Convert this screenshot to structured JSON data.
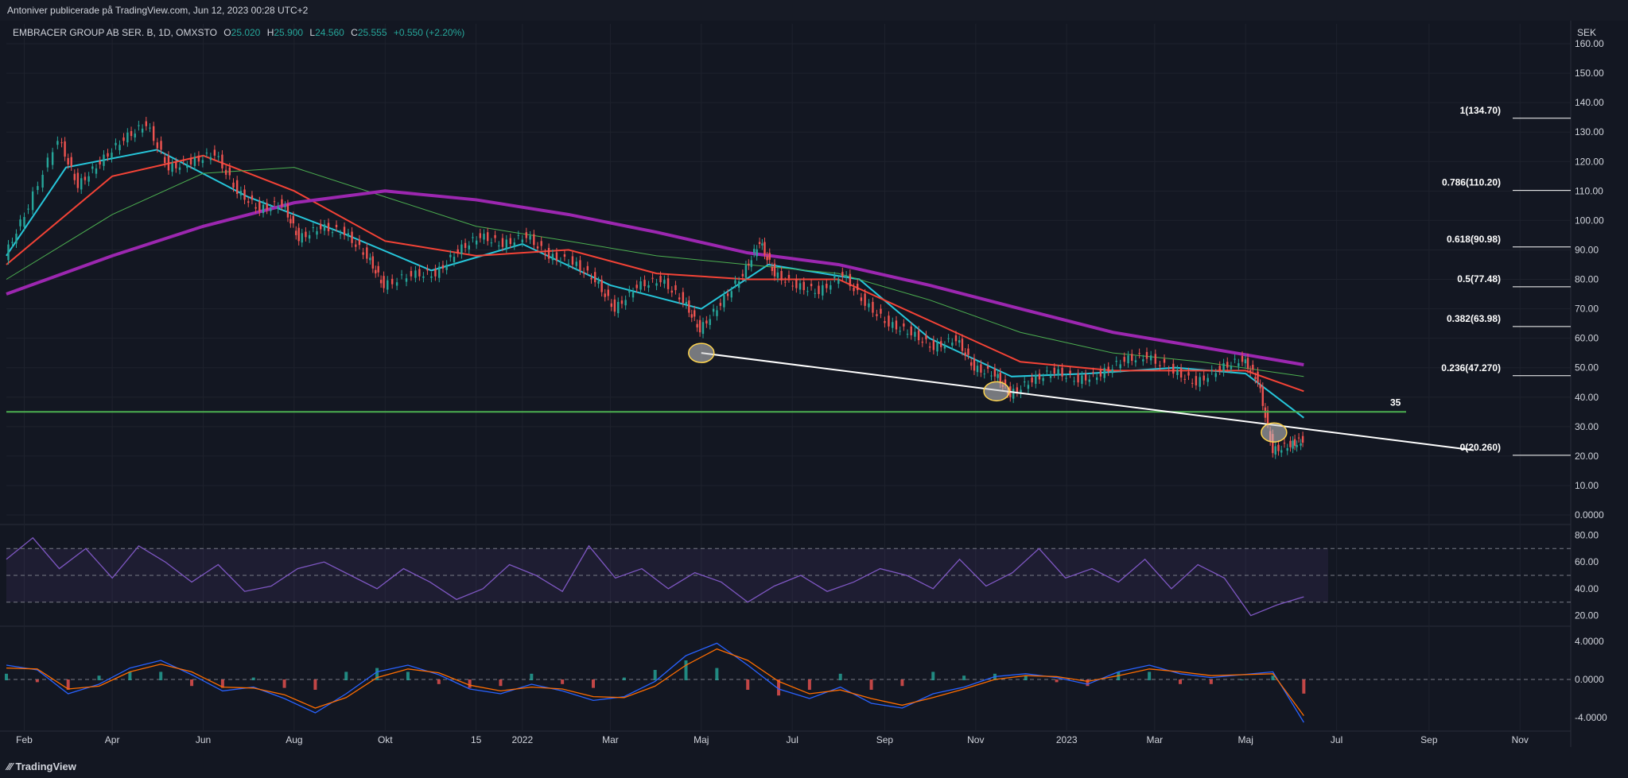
{
  "header": {
    "publisher": "Antoniver publicerade på TradingView.com, Jun 12, 2023 00:28 UTC+2"
  },
  "legend": {
    "symbol": "EMBRACER GROUP AB SER. B, 1D, OMXSTO",
    "open_label": "O",
    "open": "25.020",
    "high_label": "H",
    "high": "25.900",
    "low_label": "L",
    "low": "24.560",
    "close_label": "C",
    "close": "25.555",
    "change": "+0.550 (+2.20%)"
  },
  "footer": {
    "brand": "TradingView",
    "logo": "tradingview-logo-icon"
  },
  "colors": {
    "background": "#131722",
    "up": "#26a69a",
    "down": "#ef5350",
    "ma_fast": "#26c6da",
    "ma_mid": "#f44336",
    "ma_slow": "#4caf50",
    "ma_long": "#9c27b0",
    "rsi": "#7e57c2",
    "macd": "#2962ff",
    "signal": "#ff6d00",
    "support": "#4caf50",
    "trendline": "#ffffff"
  },
  "chart_data": [
    {
      "type": "line",
      "title": "EMBRACER GROUP AB SER. B, 1D, OMXSTO",
      "ylabel": "SEK",
      "ylim": [
        0,
        160
      ],
      "price_ticks": [
        "160.00",
        "150.00",
        "140.00",
        "130.00",
        "120.00",
        "110.00",
        "100.00",
        "90.00",
        "80.00",
        "70.00",
        "60.00",
        "50.00",
        "40.00",
        "30.00",
        "20.00",
        "10.00",
        "0.0000"
      ],
      "x_ticks": [
        "Feb",
        "Apr",
        "Jun",
        "Aug",
        "Okt",
        "15",
        "2022",
        "Mar",
        "Maj",
        "Jul",
        "Sep",
        "Nov",
        "2023",
        "Mar",
        "Maj",
        "Jul",
        "Sep",
        "Nov"
      ],
      "x_months": [
        "2021-02",
        "2021-04",
        "2021-06",
        "2021-08",
        "2021-10",
        "2021-12",
        "2022-01",
        "2022-03",
        "2022-05",
        "2022-07",
        "2022-09",
        "2022-11",
        "2023-01",
        "2023-03",
        "2023-05",
        "2023-07",
        "2023-09",
        "2023-11"
      ],
      "price_points": [
        [
          "2021-01-20",
          88
        ],
        [
          "2021-02-05",
          105
        ],
        [
          "2021-02-25",
          128
        ],
        [
          "2021-03-10",
          112
        ],
        [
          "2021-03-25",
          120
        ],
        [
          "2021-04-10",
          128
        ],
        [
          "2021-04-25",
          133
        ],
        [
          "2021-05-10",
          118
        ],
        [
          "2021-05-25",
          120
        ],
        [
          "2021-06-10",
          123
        ],
        [
          "2021-06-25",
          110
        ],
        [
          "2021-07-10",
          104
        ],
        [
          "2021-07-25",
          106
        ],
        [
          "2021-08-05",
          94
        ],
        [
          "2021-08-20",
          98
        ],
        [
          "2021-09-05",
          96
        ],
        [
          "2021-09-20",
          88
        ],
        [
          "2021-10-01",
          78
        ],
        [
          "2021-10-20",
          82
        ],
        [
          "2021-11-05",
          82
        ],
        [
          "2021-11-20",
          90
        ],
        [
          "2021-12-05",
          95
        ],
        [
          "2021-12-20",
          92
        ],
        [
          "2022-01-05",
          95
        ],
        [
          "2022-01-20",
          88
        ],
        [
          "2022-02-05",
          86
        ],
        [
          "2022-02-20",
          80
        ],
        [
          "2022-03-05",
          70
        ],
        [
          "2022-03-20",
          78
        ],
        [
          "2022-04-05",
          80
        ],
        [
          "2022-04-20",
          73
        ],
        [
          "2022-05-01",
          63
        ],
        [
          "2022-05-15",
          72
        ],
        [
          "2022-05-30",
          82
        ],
        [
          "2022-06-10",
          93
        ],
        [
          "2022-06-20",
          82
        ],
        [
          "2022-07-05",
          78
        ],
        [
          "2022-07-20",
          76
        ],
        [
          "2022-08-05",
          82
        ],
        [
          "2022-08-20",
          72
        ],
        [
          "2022-09-05",
          65
        ],
        [
          "2022-09-20",
          62
        ],
        [
          "2022-10-05",
          57
        ],
        [
          "2022-10-20",
          60
        ],
        [
          "2022-11-01",
          50
        ],
        [
          "2022-11-15",
          48
        ],
        [
          "2022-11-25",
          41
        ],
        [
          "2022-12-10",
          46
        ],
        [
          "2022-12-25",
          49
        ],
        [
          "2023-01-10",
          46
        ],
        [
          "2023-01-25",
          48
        ],
        [
          "2023-02-10",
          53
        ],
        [
          "2023-02-25",
          54
        ],
        [
          "2023-03-15",
          49
        ],
        [
          "2023-03-30",
          45
        ],
        [
          "2023-04-15",
          50
        ],
        [
          "2023-04-30",
          53
        ],
        [
          "2023-05-10",
          46
        ],
        [
          "2023-05-20",
          22
        ],
        [
          "2023-06-01",
          24
        ],
        [
          "2023-06-09",
          25.555
        ]
      ],
      "moving_averages": [
        {
          "color_key": "ma_fast",
          "points": [
            [
              "2021-01-20",
              88
            ],
            [
              "2021-03-01",
              118
            ],
            [
              "2021-05-01",
              124
            ],
            [
              "2021-07-01",
              108
            ],
            [
              "2021-09-01",
              96
            ],
            [
              "2021-11-01",
              83
            ],
            [
              "2022-01-01",
              92
            ],
            [
              "2022-03-01",
              78
            ],
            [
              "2022-05-01",
              70
            ],
            [
              "2022-06-15",
              85
            ],
            [
              "2022-08-15",
              80
            ],
            [
              "2022-10-01",
              60
            ],
            [
              "2022-11-25",
              47
            ],
            [
              "2023-01-15",
              48
            ],
            [
              "2023-03-15",
              50
            ],
            [
              "2023-05-01",
              48
            ],
            [
              "2023-06-09",
              33
            ]
          ]
        },
        {
          "color_key": "ma_mid",
          "points": [
            [
              "2021-01-20",
              85
            ],
            [
              "2021-04-01",
              115
            ],
            [
              "2021-06-01",
              122
            ],
            [
              "2021-08-01",
              110
            ],
            [
              "2021-10-01",
              93
            ],
            [
              "2021-12-01",
              88
            ],
            [
              "2022-02-01",
              90
            ],
            [
              "2022-04-01",
              82
            ],
            [
              "2022-06-01",
              80
            ],
            [
              "2022-08-01",
              80
            ],
            [
              "2022-10-01",
              66
            ],
            [
              "2022-12-01",
              52
            ],
            [
              "2023-02-01",
              49
            ],
            [
              "2023-04-01",
              49
            ],
            [
              "2023-05-01",
              49
            ],
            [
              "2023-06-09",
              42
            ]
          ]
        },
        {
          "color_key": "ma_slow",
          "points": [
            [
              "2021-01-20",
              80
            ],
            [
              "2021-04-01",
              102
            ],
            [
              "2021-06-01",
              116
            ],
            [
              "2021-08-01",
              118
            ],
            [
              "2021-10-01",
              108
            ],
            [
              "2021-12-01",
              98
            ],
            [
              "2022-02-01",
              93
            ],
            [
              "2022-04-01",
              88
            ],
            [
              "2022-06-01",
              85
            ],
            [
              "2022-08-01",
              82
            ],
            [
              "2022-10-01",
              73
            ],
            [
              "2022-12-01",
              62
            ],
            [
              "2023-02-01",
              55
            ],
            [
              "2023-04-01",
              52
            ],
            [
              "2023-06-09",
              47
            ]
          ]
        },
        {
          "color_key": "ma_long",
          "points": [
            [
              "2021-01-20",
              75
            ],
            [
              "2021-04-01",
              88
            ],
            [
              "2021-06-01",
              98
            ],
            [
              "2021-08-01",
              106
            ],
            [
              "2021-10-01",
              110
            ],
            [
              "2021-12-01",
              107
            ],
            [
              "2022-02-01",
              102
            ],
            [
              "2022-04-01",
              96
            ],
            [
              "2022-06-01",
              89
            ],
            [
              "2022-08-01",
              85
            ],
            [
              "2022-10-01",
              78
            ],
            [
              "2022-12-01",
              70
            ],
            [
              "2023-02-01",
              62
            ],
            [
              "2023-04-01",
              57
            ],
            [
              "2023-06-09",
              51
            ]
          ]
        }
      ],
      "support_line": {
        "value": 35,
        "label": "35"
      },
      "trendline": {
        "from": [
          "2022-05-01",
          55
        ],
        "to": [
          "2023-10-01",
          22
        ]
      },
      "highlighted_points": [
        [
          "2022-05-01",
          55
        ],
        [
          "2022-11-15",
          42
        ],
        [
          "2023-05-20",
          28
        ]
      ],
      "fibonacci_levels": [
        {
          "label": "1(134.70)",
          "value": 134.7
        },
        {
          "label": "0.786(110.20)",
          "value": 110.2
        },
        {
          "label": "0.618(90.98)",
          "value": 90.98
        },
        {
          "label": "0.5(77.48)",
          "value": 77.48
        },
        {
          "label": "0.382(63.98)",
          "value": 63.98
        },
        {
          "label": "0.236(47.270)",
          "value": 47.27
        },
        {
          "label": "0(20.260)",
          "value": 20.26
        }
      ]
    },
    {
      "type": "line",
      "title": "",
      "ylim": [
        15,
        85
      ],
      "ticks": [
        "80.00",
        "60.00",
        "40.00",
        "20.00"
      ],
      "bands": [
        30,
        50,
        70
      ],
      "series": [
        {
          "values": [
            62,
            78,
            55,
            70,
            48,
            72,
            60,
            45,
            58,
            38,
            42,
            55,
            60,
            50,
            40,
            55,
            45,
            32,
            40,
            58,
            50,
            38,
            72,
            48,
            55,
            40,
            52,
            45,
            30,
            42,
            50,
            38,
            45,
            55,
            50,
            40,
            62,
            42,
            52,
            70,
            48,
            55,
            45,
            62,
            40,
            58,
            48,
            20,
            28,
            34
          ]
        }
      ]
    },
    {
      "type": "bar",
      "title": "",
      "ylim": [
        -5,
        5
      ],
      "ticks": [
        "4.0000",
        "0.0000",
        "-4.0000"
      ],
      "series": [
        {
          "values": [
            1.5,
            1.0,
            -1.5,
            -0.5,
            1.2,
            2.0,
            0.5,
            -1.2,
            -0.8,
            -2.0,
            -3.5,
            -1.5,
            0.8,
            1.5,
            0.5,
            -1.0,
            -1.5,
            -0.5,
            -1.2,
            -2.2,
            -1.8,
            -0.2,
            2.5,
            3.8,
            1.5,
            -1.0,
            -2.0,
            -0.8,
            -2.5,
            -3.0,
            -1.5,
            -0.8,
            0.3,
            0.6,
            0.2,
            -0.5,
            0.8,
            1.5,
            0.6,
            0.2,
            0.5,
            0.8,
            -4.5
          ]
        },
        {
          "values": [
            1.2,
            1.1,
            -1.0,
            -0.7,
            0.8,
            1.6,
            0.8,
            -0.8,
            -0.9,
            -1.6,
            -3.0,
            -1.9,
            0.2,
            1.1,
            0.7,
            -0.6,
            -1.2,
            -0.8,
            -1.0,
            -1.8,
            -1.9,
            -0.7,
            1.5,
            3.2,
            2.0,
            -0.2,
            -1.5,
            -1.1,
            -2.0,
            -2.7,
            -1.9,
            -1.0,
            0.0,
            0.4,
            0.3,
            -0.2,
            0.4,
            1.1,
            0.8,
            0.4,
            0.5,
            0.6,
            -3.8
          ]
        }
      ]
    }
  ]
}
